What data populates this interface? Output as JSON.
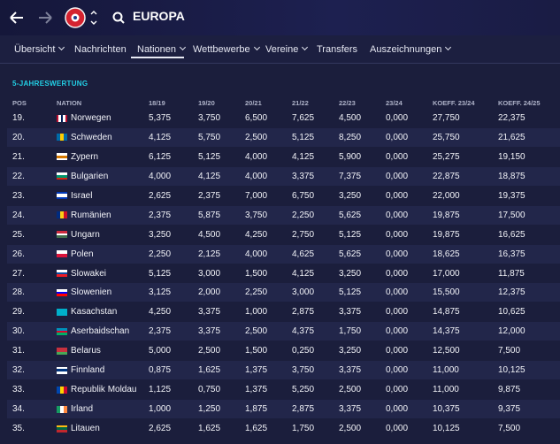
{
  "header": {
    "title": "EUROPA"
  },
  "tabs": [
    "Übersicht",
    "Nachrichten",
    "Nationen",
    "Wettbewerbe",
    "Vereine",
    "Transfers",
    "Auszeichnungen"
  ],
  "section_title": "5-JAHRESWERTUNG",
  "table": {
    "columns": [
      "POS",
      "NATION",
      "18/19",
      "19/20",
      "20/21",
      "21/22",
      "22/23",
      "23/24",
      "KOEFF. 23/24",
      "KOEFF. 24/25"
    ],
    "rows": [
      [
        "19.",
        "Norwegen",
        "5,375",
        "3,750",
        "6,500",
        "7,625",
        "4,500",
        "0,000",
        "27,750",
        "22,375"
      ],
      [
        "20.",
        "Schweden",
        "4,125",
        "5,750",
        "2,500",
        "5,125",
        "8,250",
        "0,000",
        "25,750",
        "21,625"
      ],
      [
        "21.",
        "Zypern",
        "6,125",
        "5,125",
        "4,000",
        "4,125",
        "5,900",
        "0,000",
        "25,275",
        "19,150"
      ],
      [
        "22.",
        "Bulgarien",
        "4,000",
        "4,125",
        "4,000",
        "3,375",
        "7,375",
        "0,000",
        "22,875",
        "18,875"
      ],
      [
        "23.",
        "Israel",
        "2,625",
        "2,375",
        "7,000",
        "6,750",
        "3,250",
        "0,000",
        "22,000",
        "19,375"
      ],
      [
        "24.",
        "Rumänien",
        "2,375",
        "5,875",
        "3,750",
        "2,250",
        "5,625",
        "0,000",
        "19,875",
        "17,500"
      ],
      [
        "25.",
        "Ungarn",
        "3,250",
        "4,500",
        "4,250",
        "2,750",
        "5,125",
        "0,000",
        "19,875",
        "16,625"
      ],
      [
        "26.",
        "Polen",
        "2,250",
        "2,125",
        "4,000",
        "4,625",
        "5,625",
        "0,000",
        "18,625",
        "16,375"
      ],
      [
        "27.",
        "Slowakei",
        "5,125",
        "3,000",
        "1,500",
        "4,125",
        "3,250",
        "0,000",
        "17,000",
        "11,875"
      ],
      [
        "28.",
        "Slowenien",
        "3,125",
        "2,000",
        "2,250",
        "3,000",
        "5,125",
        "0,000",
        "15,500",
        "12,375"
      ],
      [
        "29.",
        "Kasachstan",
        "4,250",
        "3,375",
        "1,000",
        "2,875",
        "3,375",
        "0,000",
        "14,875",
        "10,625"
      ],
      [
        "30.",
        "Aserbaidschan",
        "2,375",
        "3,375",
        "2,500",
        "4,375",
        "1,750",
        "0,000",
        "14,375",
        "12,000"
      ],
      [
        "31.",
        "Belarus",
        "5,000",
        "2,500",
        "1,500",
        "0,250",
        "3,250",
        "0,000",
        "12,500",
        "7,500"
      ],
      [
        "32.",
        "Finnland",
        "0,875",
        "1,625",
        "1,375",
        "3,750",
        "3,375",
        "0,000",
        "11,000",
        "10,125"
      ],
      [
        "33.",
        "Republik Moldau",
        "1,125",
        "0,750",
        "1,375",
        "5,250",
        "2,500",
        "0,000",
        "11,000",
        "9,875"
      ],
      [
        "34.",
        "Irland",
        "1,000",
        "1,250",
        "1,875",
        "2,875",
        "3,375",
        "0,000",
        "10,375",
        "9,375"
      ],
      [
        "35.",
        "Litauen",
        "2,625",
        "1,625",
        "1,625",
        "1,750",
        "2,500",
        "0,000",
        "10,125",
        "7,500"
      ]
    ]
  }
}
